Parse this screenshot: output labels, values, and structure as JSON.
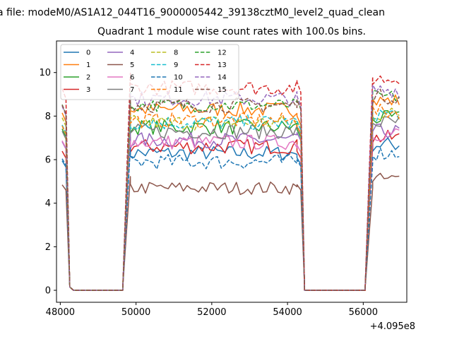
{
  "figure": {
    "suptitle": "a file: modeM0/AS1A12_044T16_9000005442_39138cztM0_level2_quad_clean",
    "title": "Quadrant 1 module wise count rates with 100.0s bins.",
    "offset_text": "+4.095e8"
  },
  "chart_data": {
    "type": "line",
    "title": "Quadrant 1 module wise count rates with 100.0s bins.",
    "xlabel": "",
    "ylabel": "",
    "x_offset": 409500000,
    "xlim": [
      47900,
      57150
    ],
    "ylim": [
      -0.55,
      11.45
    ],
    "xticks": [
      48000,
      50000,
      52000,
      54000,
      56000
    ],
    "yticks": [
      0,
      2,
      4,
      6,
      8,
      10
    ],
    "grid": false,
    "legend": {
      "placement": "top-left",
      "columns": 4
    },
    "segments": [
      {
        "kind": "edge",
        "x": [
          48050,
          48150,
          48250
        ],
        "pos": "start"
      },
      {
        "kind": "zero",
        "x": [
          48350,
          48450,
          49650
        ]
      },
      {
        "kind": "edge",
        "x": [
          49650,
          49750,
          49850
        ],
        "pos": "end"
      },
      {
        "kind": "plateau",
        "x0": 49850,
        "x1": 54250,
        "step": 100
      },
      {
        "kind": "edge",
        "x": [
          54250,
          54350,
          54450
        ],
        "pos": "start"
      },
      {
        "kind": "zero",
        "x": [
          54450,
          54550,
          56050
        ]
      },
      {
        "kind": "edge",
        "x": [
          56050,
          56150,
          56250
        ],
        "pos": "end"
      },
      {
        "kind": "plateau",
        "x0": 56250,
        "x1": 56950,
        "step": 100
      }
    ],
    "series": [
      {
        "name": "0",
        "color": "#1f77b4",
        "dash": "solid",
        "level": 6.3,
        "noise": 0.35
      },
      {
        "name": "1",
        "color": "#ff7f0e",
        "dash": "solid",
        "level": 8.3,
        "noise": 0.35
      },
      {
        "name": "2",
        "color": "#2ca02c",
        "dash": "solid",
        "level": 7.5,
        "noise": 0.35
      },
      {
        "name": "3",
        "color": "#d62728",
        "dash": "solid",
        "level": 6.6,
        "noise": 0.35
      },
      {
        "name": "4",
        "color": "#9467bd",
        "dash": "solid",
        "level": 6.9,
        "noise": 0.35
      },
      {
        "name": "5",
        "color": "#8c564b",
        "dash": "solid",
        "level": 4.7,
        "noise": 0.3
      },
      {
        "name": "6",
        "color": "#e377c2",
        "dash": "solid",
        "level": 6.8,
        "noise": 0.35
      },
      {
        "name": "7",
        "color": "#7f7f7f",
        "dash": "solid",
        "level": 7.3,
        "noise": 0.35
      },
      {
        "name": "8",
        "color": "#bcbd22",
        "dash": "dashed",
        "level": 7.7,
        "noise": 0.35
      },
      {
        "name": "9",
        "color": "#17becf",
        "dash": "dashed",
        "level": 7.7,
        "noise": 0.35
      },
      {
        "name": "10",
        "color": "#1f77b4",
        "dash": "dashed",
        "level": 5.9,
        "noise": 0.35
      },
      {
        "name": "11",
        "color": "#ff7f0e",
        "dash": "dashed",
        "level": 7.8,
        "noise": 0.35
      },
      {
        "name": "12",
        "color": "#2ca02c",
        "dash": "dashed",
        "level": 8.5,
        "noise": 0.3
      },
      {
        "name": "13",
        "color": "#d62728",
        "dash": "dashed",
        "level": 9.3,
        "noise": 0.35
      },
      {
        "name": "14",
        "color": "#9467bd",
        "dash": "dashed",
        "level": 8.8,
        "noise": 0.35
      },
      {
        "name": "15",
        "color": "#8c564b",
        "dash": "dashed",
        "level": 8.5,
        "noise": 0.35
      }
    ]
  }
}
